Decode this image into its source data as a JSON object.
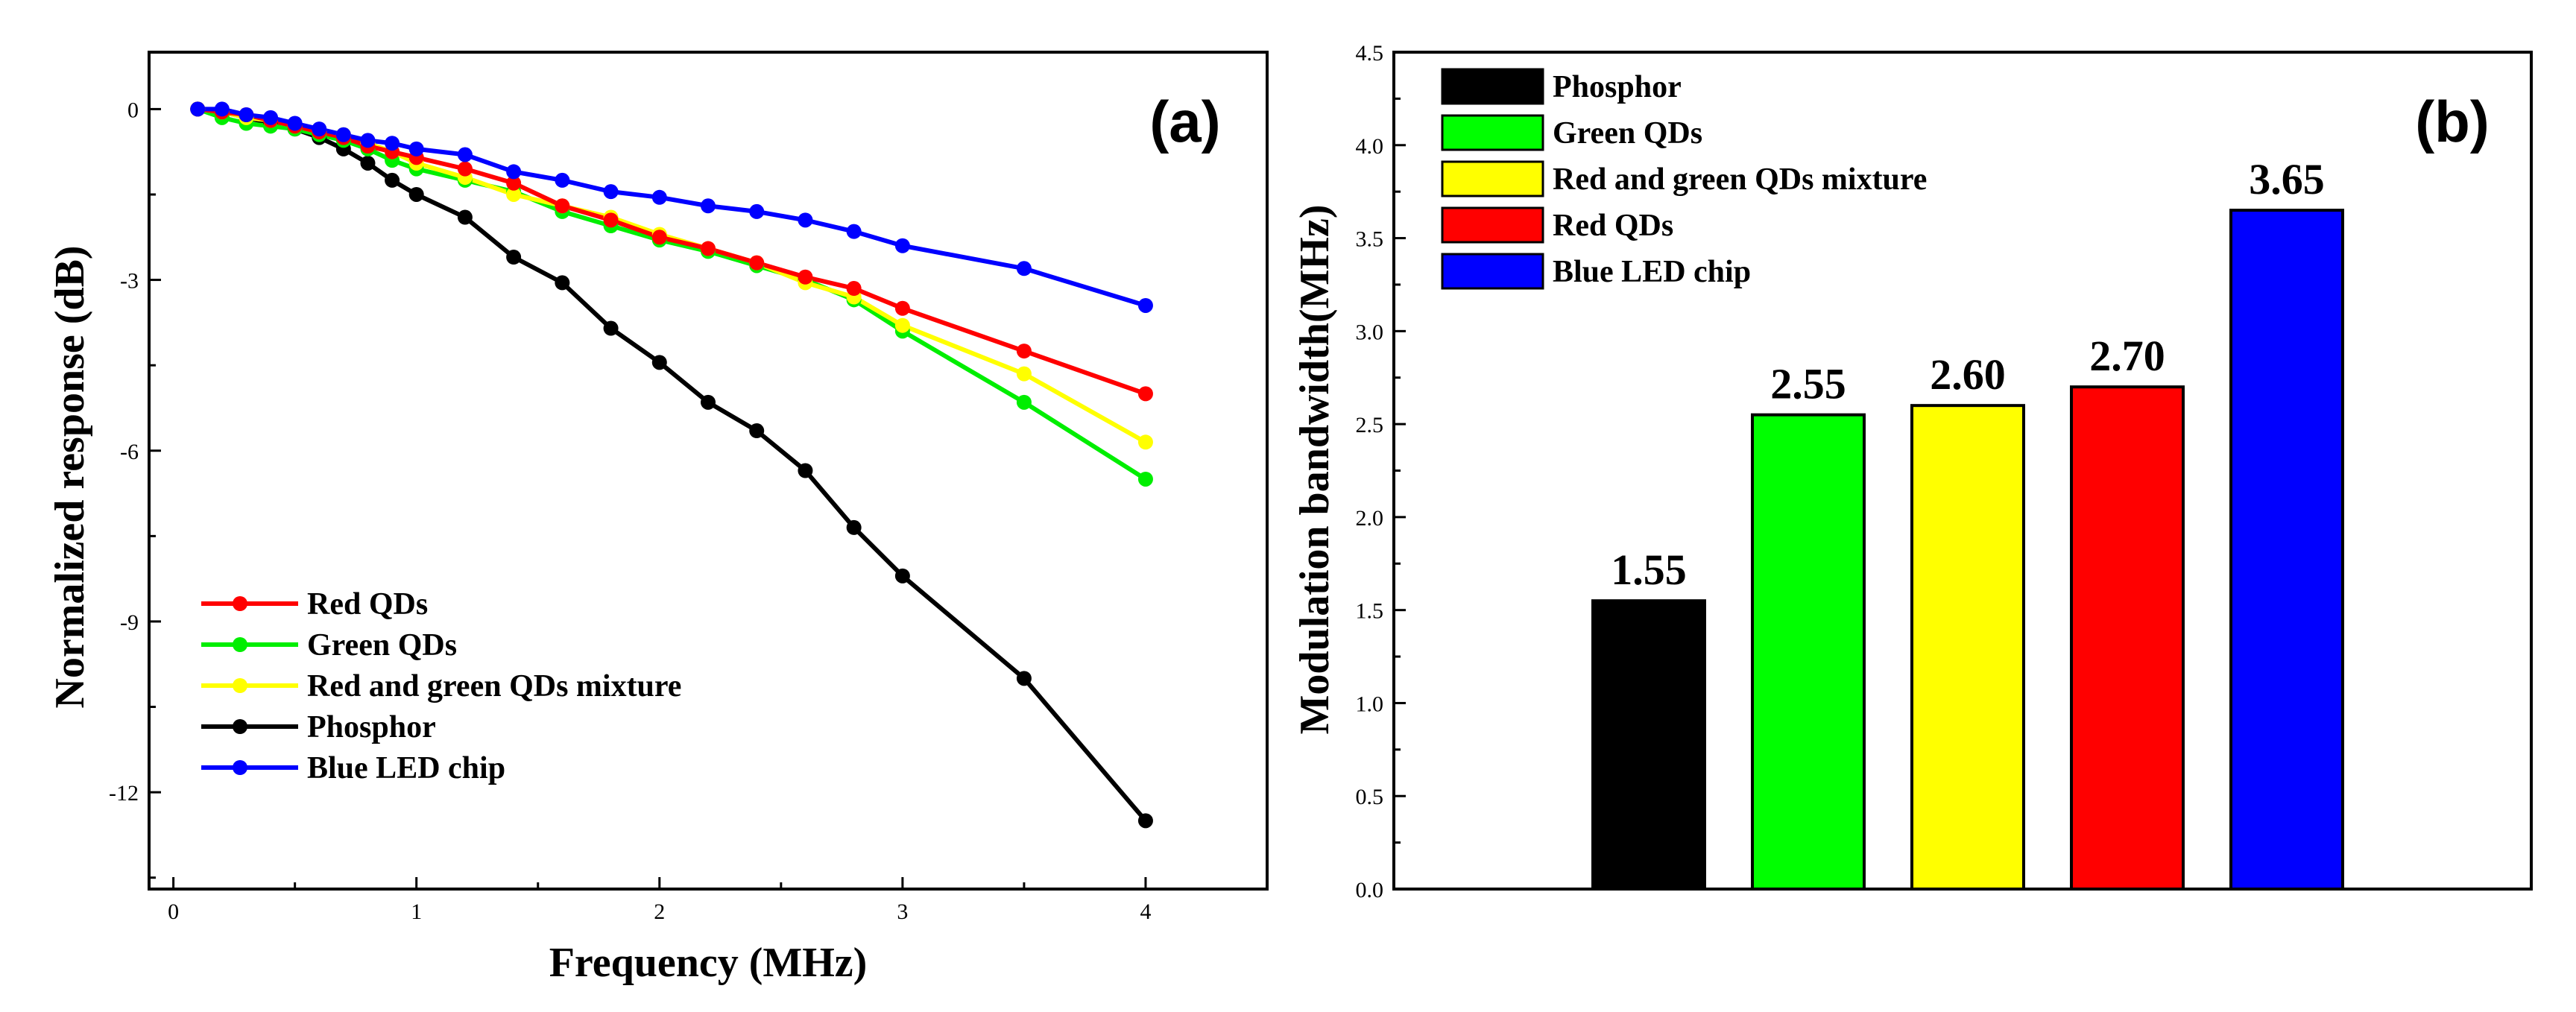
{
  "chart_data": [
    {
      "type": "line",
      "panel_label": "(a)",
      "xlabel": "Frequency (MHz)",
      "ylabel": "Normalized response (dB)",
      "xlim": [
        -0.1,
        4.5
      ],
      "ylim": [
        -13.7,
        1.0
      ],
      "x_ticks": [
        0,
        1,
        2,
        3,
        4
      ],
      "x_tick_labels": [
        "0",
        "1",
        "2",
        "3",
        "4"
      ],
      "y_ticks": [
        0,
        -3,
        -6,
        -9,
        -12
      ],
      "y_tick_labels": [
        "0",
        "-3",
        "-6",
        "-9",
        "-12"
      ],
      "legend_position": "bottom-left",
      "legend_order": [
        "Red QDs",
        "Green QDs",
        "Red and green QDs mixture",
        "Phosphor",
        "Blue LED chip"
      ],
      "series": [
        {
          "name": "Phosphor",
          "color": "#000000",
          "x": [
            0.1,
            0.2,
            0.3,
            0.4,
            0.5,
            0.6,
            0.7,
            0.8,
            0.9,
            1.0,
            1.2,
            1.4,
            1.6,
            1.8,
            2.0,
            2.2,
            2.4,
            2.6,
            2.8,
            3.0,
            3.5,
            4.0
          ],
          "y": [
            0,
            -0.05,
            -0.15,
            -0.25,
            -0.35,
            -0.5,
            -0.7,
            -0.95,
            -1.25,
            -1.5,
            -1.9,
            -2.6,
            -3.05,
            -3.85,
            -4.45,
            -5.15,
            -5.65,
            -6.35,
            -7.35,
            -8.2,
            -10.0,
            -12.5
          ]
        },
        {
          "name": "Green QDs",
          "color": "#00ee00",
          "x": [
            0.1,
            0.2,
            0.3,
            0.4,
            0.5,
            0.6,
            0.7,
            0.8,
            0.9,
            1.0,
            1.2,
            1.4,
            1.6,
            1.8,
            2.0,
            2.2,
            2.4,
            2.6,
            2.8,
            3.0,
            3.5,
            4.0
          ],
          "y": [
            0,
            -0.15,
            -0.25,
            -0.3,
            -0.35,
            -0.45,
            -0.55,
            -0.7,
            -0.9,
            -1.05,
            -1.25,
            -1.45,
            -1.8,
            -2.05,
            -2.3,
            -2.5,
            -2.75,
            -3.0,
            -3.35,
            -3.9,
            -5.15,
            -6.5
          ]
        },
        {
          "name": "Red and green QDs mixture",
          "color": "#ffff00",
          "x": [
            0.1,
            0.2,
            0.3,
            0.4,
            0.5,
            0.6,
            0.7,
            0.8,
            0.9,
            1.0,
            1.2,
            1.4,
            1.6,
            1.8,
            2.0,
            2.2,
            2.4,
            2.6,
            2.8,
            3.0,
            3.5,
            4.0
          ],
          "y": [
            0,
            -0.05,
            -0.15,
            -0.2,
            -0.3,
            -0.4,
            -0.45,
            -0.6,
            -0.75,
            -0.95,
            -1.2,
            -1.5,
            -1.7,
            -1.9,
            -2.2,
            -2.45,
            -2.7,
            -3.05,
            -3.3,
            -3.8,
            -4.65,
            -5.85
          ]
        },
        {
          "name": "Red QDs",
          "color": "#ff0000",
          "x": [
            0.1,
            0.2,
            0.3,
            0.4,
            0.5,
            0.6,
            0.7,
            0.8,
            0.9,
            1.0,
            1.2,
            1.4,
            1.6,
            1.8,
            2.0,
            2.2,
            2.4,
            2.6,
            2.8,
            3.0,
            3.5,
            4.0
          ],
          "y": [
            0,
            -0.05,
            -0.1,
            -0.2,
            -0.3,
            -0.4,
            -0.5,
            -0.65,
            -0.75,
            -0.85,
            -1.05,
            -1.3,
            -1.7,
            -1.95,
            -2.25,
            -2.45,
            -2.7,
            -2.95,
            -3.15,
            -3.5,
            -4.25,
            -5.0
          ]
        },
        {
          "name": "Blue LED chip",
          "color": "#0000ff",
          "x": [
            0.1,
            0.2,
            0.3,
            0.4,
            0.5,
            0.6,
            0.7,
            0.8,
            0.9,
            1.0,
            1.2,
            1.4,
            1.6,
            1.8,
            2.0,
            2.2,
            2.4,
            2.6,
            2.8,
            3.0,
            3.5,
            4.0
          ],
          "y": [
            0,
            0,
            -0.1,
            -0.15,
            -0.25,
            -0.35,
            -0.45,
            -0.55,
            -0.6,
            -0.7,
            -0.8,
            -1.1,
            -1.25,
            -1.45,
            -1.55,
            -1.7,
            -1.8,
            -1.95,
            -2.15,
            -2.4,
            -2.8,
            -3.45
          ]
        }
      ]
    },
    {
      "type": "bar",
      "panel_label": "(b)",
      "xlabel": "",
      "ylabel": "Modulation bandwidth(MHz)",
      "ylim": [
        0.0,
        4.5
      ],
      "y_ticks": [
        0.0,
        0.5,
        1.0,
        1.5,
        2.0,
        2.5,
        3.0,
        3.5,
        4.0,
        4.5
      ],
      "y_tick_labels": [
        "0.0",
        "0.5",
        "1.0",
        "1.5",
        "2.0",
        "2.5",
        "3.0",
        "3.5",
        "4.0",
        "4.5"
      ],
      "legend_position": "top-left",
      "categories": [
        "Phosphor",
        "Green QDs",
        "Red and green QDs mixture",
        "Red QDs",
        "Blue LED chip"
      ],
      "values": [
        1.55,
        2.55,
        2.6,
        2.7,
        3.65
      ],
      "value_labels": [
        "1.55",
        "2.55",
        "2.60",
        "2.70",
        "3.65"
      ],
      "colors": [
        "#000000",
        "#00ff00",
        "#ffff00",
        "#ff0000",
        "#0000ff"
      ]
    }
  ]
}
